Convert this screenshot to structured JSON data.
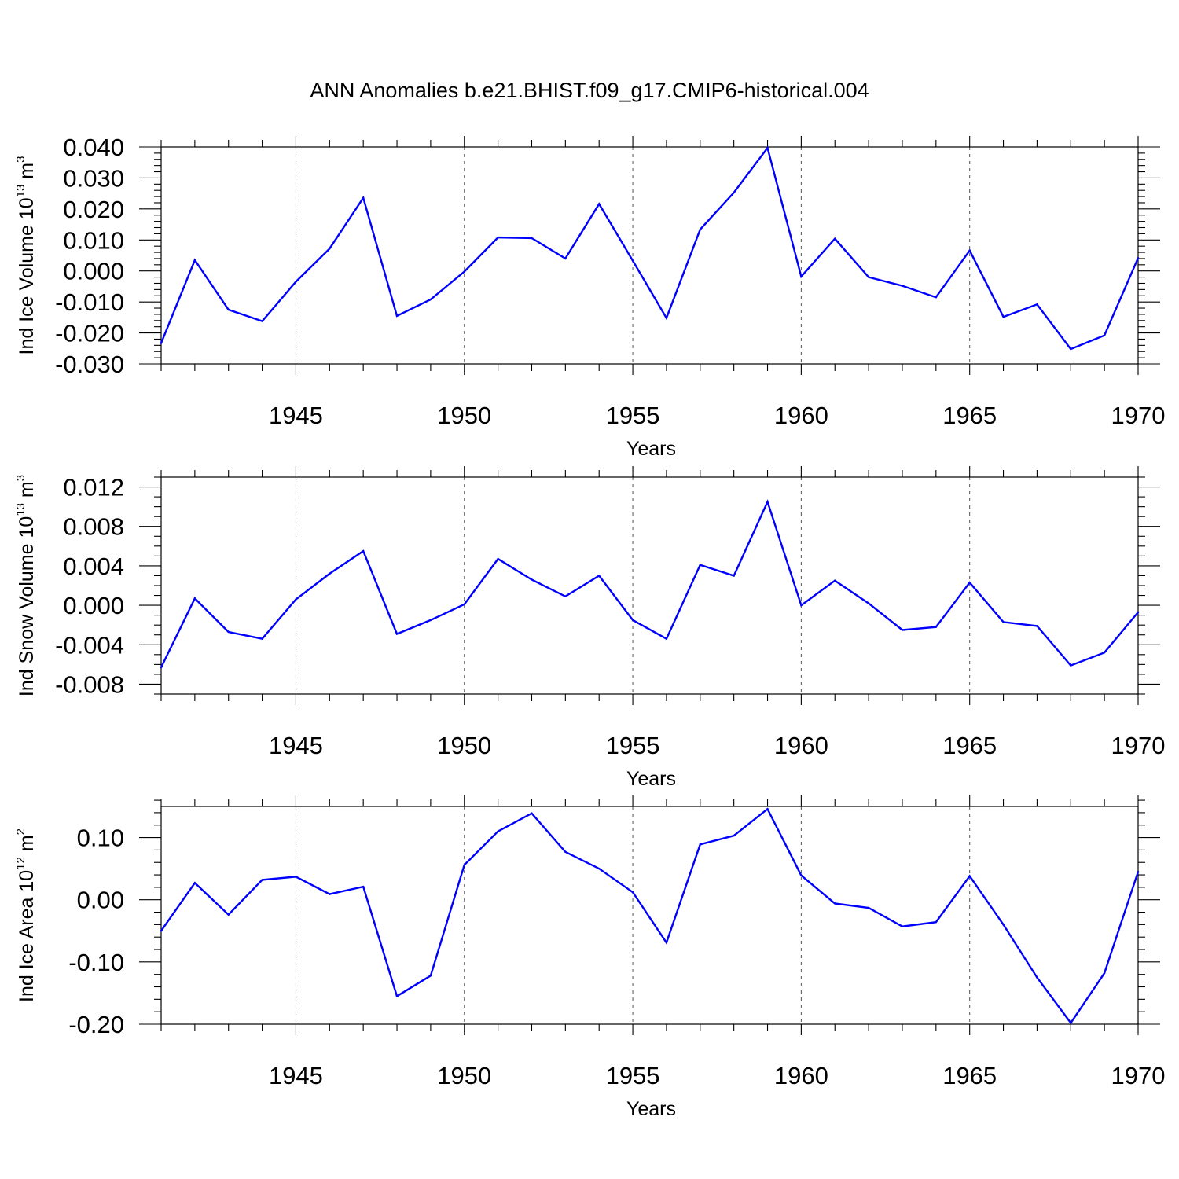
{
  "title": "ANN Anomalies b.e21.BHIST.f09_g17.CMIP6-historical.004",
  "chart_data": [
    {
      "type": "line",
      "ylabel_main": "Ind Ice Volume 10",
      "ylabel_sup": "13",
      "ylabel_unit": " m",
      "ylabel_unit_sup": "3",
      "xlabel": "Years",
      "xlim": [
        1941,
        1970
      ],
      "ylim": [
        -0.03,
        0.04
      ],
      "yticks": [
        -0.03,
        -0.02,
        -0.01,
        0.0,
        0.01,
        0.02,
        0.03,
        0.04
      ],
      "ytick_labels": [
        "-0.030",
        "-0.020",
        "-0.010",
        "0.000",
        "0.010",
        "0.020",
        "0.030",
        "0.040"
      ],
      "yminor_step": 0.002,
      "xticks": [
        1945,
        1950,
        1955,
        1960,
        1965,
        1970
      ],
      "xtick_labels": [
        "1945",
        "1950",
        "1955",
        "1960",
        "1965",
        "1970"
      ],
      "series": [
        {
          "name": "Ind Ice Volume",
          "color": "#0000ff",
          "x": [
            1941,
            1942,
            1943,
            1944,
            1945,
            1946,
            1947,
            1948,
            1949,
            1950,
            1951,
            1952,
            1953,
            1954,
            1955,
            1956,
            1957,
            1958,
            1959,
            1960,
            1961,
            1962,
            1963,
            1964,
            1965,
            1966,
            1967,
            1968,
            1969,
            1970
          ],
          "values": [
            -0.0233,
            0.0035,
            -0.0125,
            -0.0162,
            -0.0035,
            0.0072,
            0.0236,
            -0.0145,
            -0.0092,
            -0.0002,
            0.0108,
            0.0106,
            0.004,
            0.0216,
            0.0033,
            -0.0152,
            0.0134,
            0.0253,
            0.0397,
            -0.0018,
            0.0104,
            -0.002,
            -0.0048,
            -0.0085,
            0.0066,
            -0.0148,
            -0.0108,
            -0.0252,
            -0.0208,
            0.0042
          ]
        }
      ]
    },
    {
      "type": "line",
      "ylabel_main": "Ind Snow Volume 10",
      "ylabel_sup": "13",
      "ylabel_unit": " m",
      "ylabel_unit_sup": "3",
      "xlabel": "Years",
      "xlim": [
        1941,
        1970
      ],
      "ylim": [
        -0.009,
        0.013
      ],
      "yticks": [
        -0.008,
        -0.004,
        0.0,
        0.004,
        0.008,
        0.012
      ],
      "ytick_labels": [
        "-0.008",
        "-0.004",
        "0.000",
        "0.004",
        "0.008",
        "0.012"
      ],
      "yminor_step": 0.001,
      "xticks": [
        1945,
        1950,
        1955,
        1960,
        1965,
        1970
      ],
      "xtick_labels": [
        "1945",
        "1950",
        "1955",
        "1960",
        "1965",
        "1970"
      ],
      "series": [
        {
          "name": "Ind Snow Volume",
          "color": "#0000ff",
          "x": [
            1941,
            1942,
            1943,
            1944,
            1945,
            1946,
            1947,
            1948,
            1949,
            1950,
            1951,
            1952,
            1953,
            1954,
            1955,
            1956,
            1957,
            1958,
            1959,
            1960,
            1961,
            1962,
            1963,
            1964,
            1965,
            1966,
            1967,
            1968,
            1969,
            1970
          ],
          "values": [
            -0.0063,
            0.0007,
            -0.0027,
            -0.0034,
            0.0006,
            0.0032,
            0.0055,
            -0.0029,
            -0.0015,
            0.0001,
            0.0047,
            0.0026,
            0.0009,
            0.003,
            -0.0015,
            -0.0034,
            0.0041,
            0.003,
            0.0105,
            0.0,
            0.0025,
            0.0002,
            -0.0025,
            -0.0022,
            0.0023,
            -0.0017,
            -0.0021,
            -0.0061,
            -0.0048,
            -0.0007
          ]
        }
      ]
    },
    {
      "type": "line",
      "ylabel_main": "Ind Ice Area 10",
      "ylabel_sup": "12",
      "ylabel_unit": " m",
      "ylabel_unit_sup": "2",
      "xlabel": "Years",
      "xlim": [
        1941,
        1970
      ],
      "ylim": [
        -0.2,
        0.15
      ],
      "yticks": [
        -0.2,
        -0.1,
        0.0,
        0.1
      ],
      "ytick_labels": [
        "-0.20",
        "-0.10",
        "0.00",
        "0.10"
      ],
      "yminor_step": 0.02,
      "xticks": [
        1945,
        1950,
        1955,
        1960,
        1965,
        1970
      ],
      "xtick_labels": [
        "1945",
        "1950",
        "1955",
        "1960",
        "1965",
        "1970"
      ],
      "series": [
        {
          "name": "Ind Ice Area",
          "color": "#0000ff",
          "x": [
            1941,
            1942,
            1943,
            1944,
            1945,
            1946,
            1947,
            1948,
            1949,
            1950,
            1951,
            1952,
            1953,
            1954,
            1955,
            1956,
            1957,
            1958,
            1959,
            1960,
            1961,
            1962,
            1963,
            1964,
            1965,
            1966,
            1967,
            1968,
            1969,
            1970
          ],
          "values": [
            -0.05,
            0.027,
            -0.024,
            0.032,
            0.037,
            0.009,
            0.021,
            -0.155,
            -0.122,
            0.056,
            0.11,
            0.139,
            0.077,
            0.05,
            0.012,
            -0.069,
            0.089,
            0.103,
            0.146,
            0.039,
            -0.006,
            -0.013,
            -0.043,
            -0.036,
            0.038,
            -0.04,
            -0.125,
            -0.198,
            -0.118,
            0.045
          ]
        }
      ]
    }
  ]
}
